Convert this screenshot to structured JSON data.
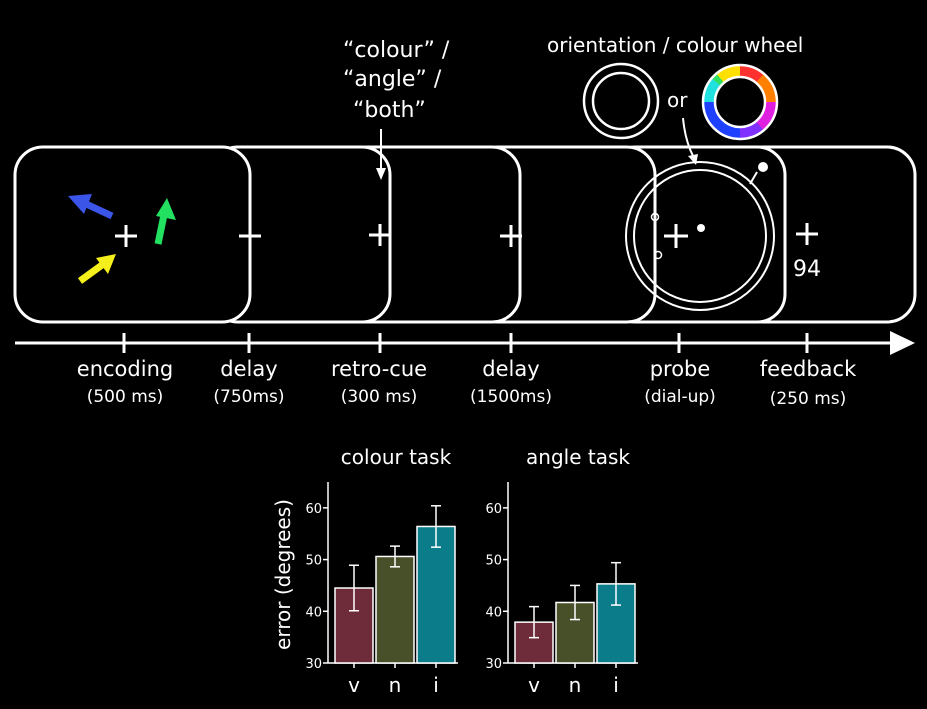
{
  "cue_options": [
    "“colour” /",
    "“angle” /",
    "“both”"
  ],
  "wheel_label": "orientation / colour wheel",
  "or_label": "or",
  "feedback_value": "94",
  "timeline": [
    {
      "name": "encoding",
      "duration": "(500 ms)"
    },
    {
      "name": "delay",
      "duration": "(750ms)"
    },
    {
      "name": "retro-cue",
      "duration": "(300 ms)"
    },
    {
      "name": "delay",
      "duration": "(1500ms)"
    },
    {
      "name": "probe",
      "duration": "(dial-up)"
    },
    {
      "name": "feedback",
      "duration": "(250 ms)"
    }
  ],
  "colors": {
    "arrow_blue": "#3a55e8",
    "arrow_green": "#22e060",
    "arrow_yellow": "#f4ee1a",
    "bar_v": "#6e2b3a",
    "bar_n": "#48502a",
    "bar_i": "#0a7c8a"
  },
  "chart_data": [
    {
      "type": "bar",
      "title": "colour task",
      "ylabel": "error (degrees)",
      "categories": [
        "v",
        "n",
        "i"
      ],
      "values": [
        44.5,
        50.6,
        56.4
      ],
      "error": [
        4.4,
        2.0,
        4.0
      ],
      "ylim": [
        30,
        65
      ],
      "yticks": [
        30,
        40,
        50,
        60
      ]
    },
    {
      "type": "bar",
      "title": "angle task",
      "categories": [
        "v",
        "n",
        "i"
      ],
      "values": [
        37.9,
        41.7,
        45.3
      ],
      "error": [
        3.0,
        3.3,
        4.1
      ],
      "ylim": [
        30,
        65
      ],
      "yticks": [
        30,
        40,
        50,
        60
      ]
    }
  ]
}
